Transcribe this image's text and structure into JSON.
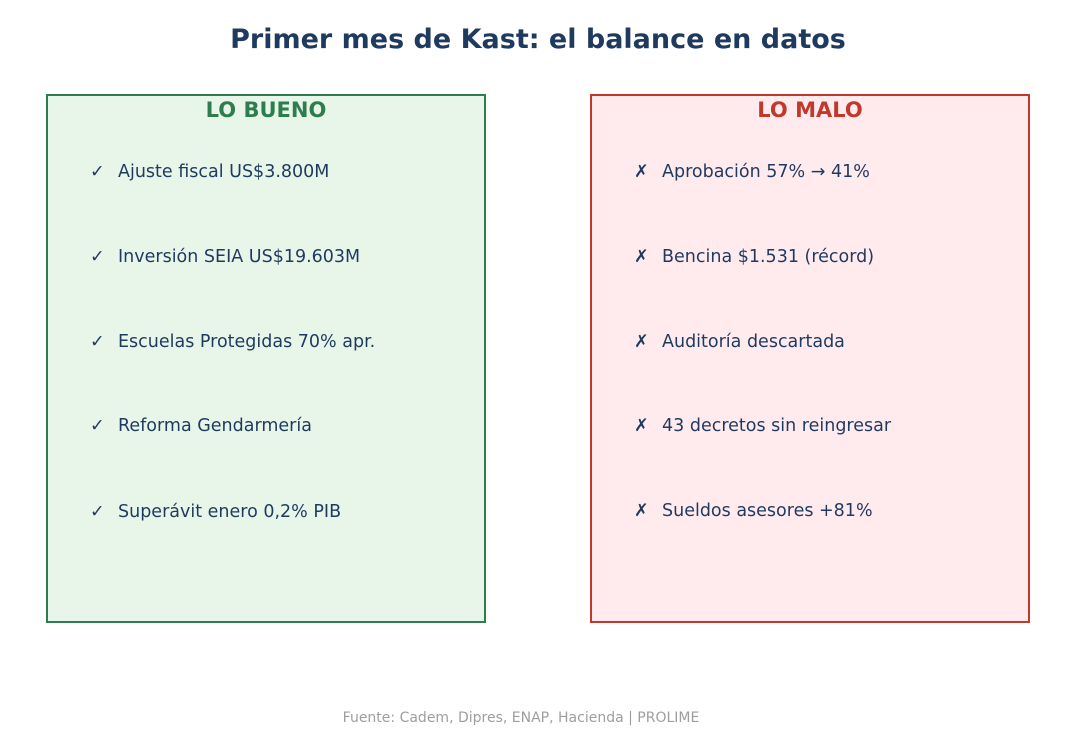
{
  "title": "Primer mes de Kast: el balance en datos",
  "colors": {
    "title": "#1f3a5f",
    "good_border": "#2e7d4f",
    "good_fill": "#e8f5e9",
    "bad_border": "#c0392b",
    "bad_fill": "#ffebee",
    "item_text": "#1f3a5f",
    "source_text": "#9e9e9e"
  },
  "good": {
    "heading": "LO BUENO",
    "mark": "✓",
    "items": [
      "Ajuste fiscal US$3.800M",
      "Inversión SEIA US$19.603M",
      "Escuelas Protegidas 70% apr.",
      "Reforma Gendarmería",
      "Superávit enero 0,2% PIB"
    ]
  },
  "bad": {
    "heading": "LO MALO",
    "mark": "✗",
    "items": [
      "Aprobación 57% → 41%",
      "Bencina $1.531 (récord)",
      "Auditoría descartada",
      "43 decretos sin reingresar",
      "Sueldos asesores +81%"
    ]
  },
  "source": "Fuente: Cadem, Dipres, ENAP, Hacienda  |  PROLIME"
}
